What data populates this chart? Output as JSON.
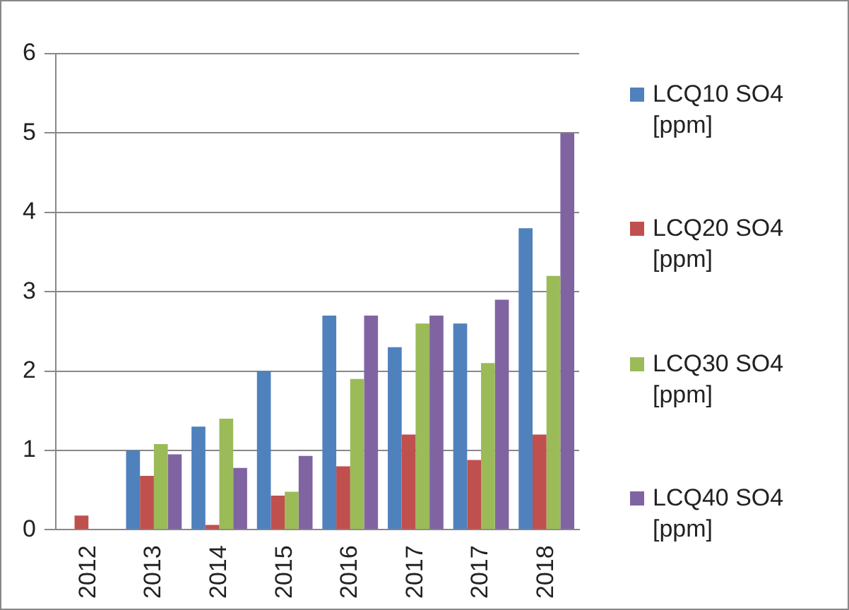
{
  "chart_data": {
    "type": "bar",
    "categories": [
      "2012",
      "2013",
      "2014",
      "2015",
      "2016",
      "2017",
      "2017",
      "2018"
    ],
    "series": [
      {
        "name": "LCQ10 SO4 [ppm]",
        "color": "#4f81bd",
        "values": [
          null,
          1.0,
          1.3,
          2.0,
          2.7,
          2.3,
          2.6,
          3.8
        ]
      },
      {
        "name": "LCQ20 SO4 [ppm]",
        "color": "#c0504d",
        "values": [
          0.18,
          0.68,
          0.06,
          0.43,
          0.8,
          1.2,
          0.88,
          1.2
        ]
      },
      {
        "name": "LCQ30 SO4 [ppm]",
        "color": "#9bbb59",
        "values": [
          null,
          1.08,
          1.4,
          0.48,
          1.9,
          2.6,
          2.1,
          3.2
        ]
      },
      {
        "name": "LCQ40 SO4 [ppm]",
        "color": "#8064a2",
        "values": [
          null,
          0.95,
          0.78,
          0.93,
          2.7,
          2.7,
          2.9,
          5.0
        ]
      }
    ],
    "ylim": [
      0,
      6
    ],
    "yticks": [
      0,
      1,
      2,
      3,
      4,
      5,
      6
    ],
    "grid": "y",
    "legend": "right"
  }
}
